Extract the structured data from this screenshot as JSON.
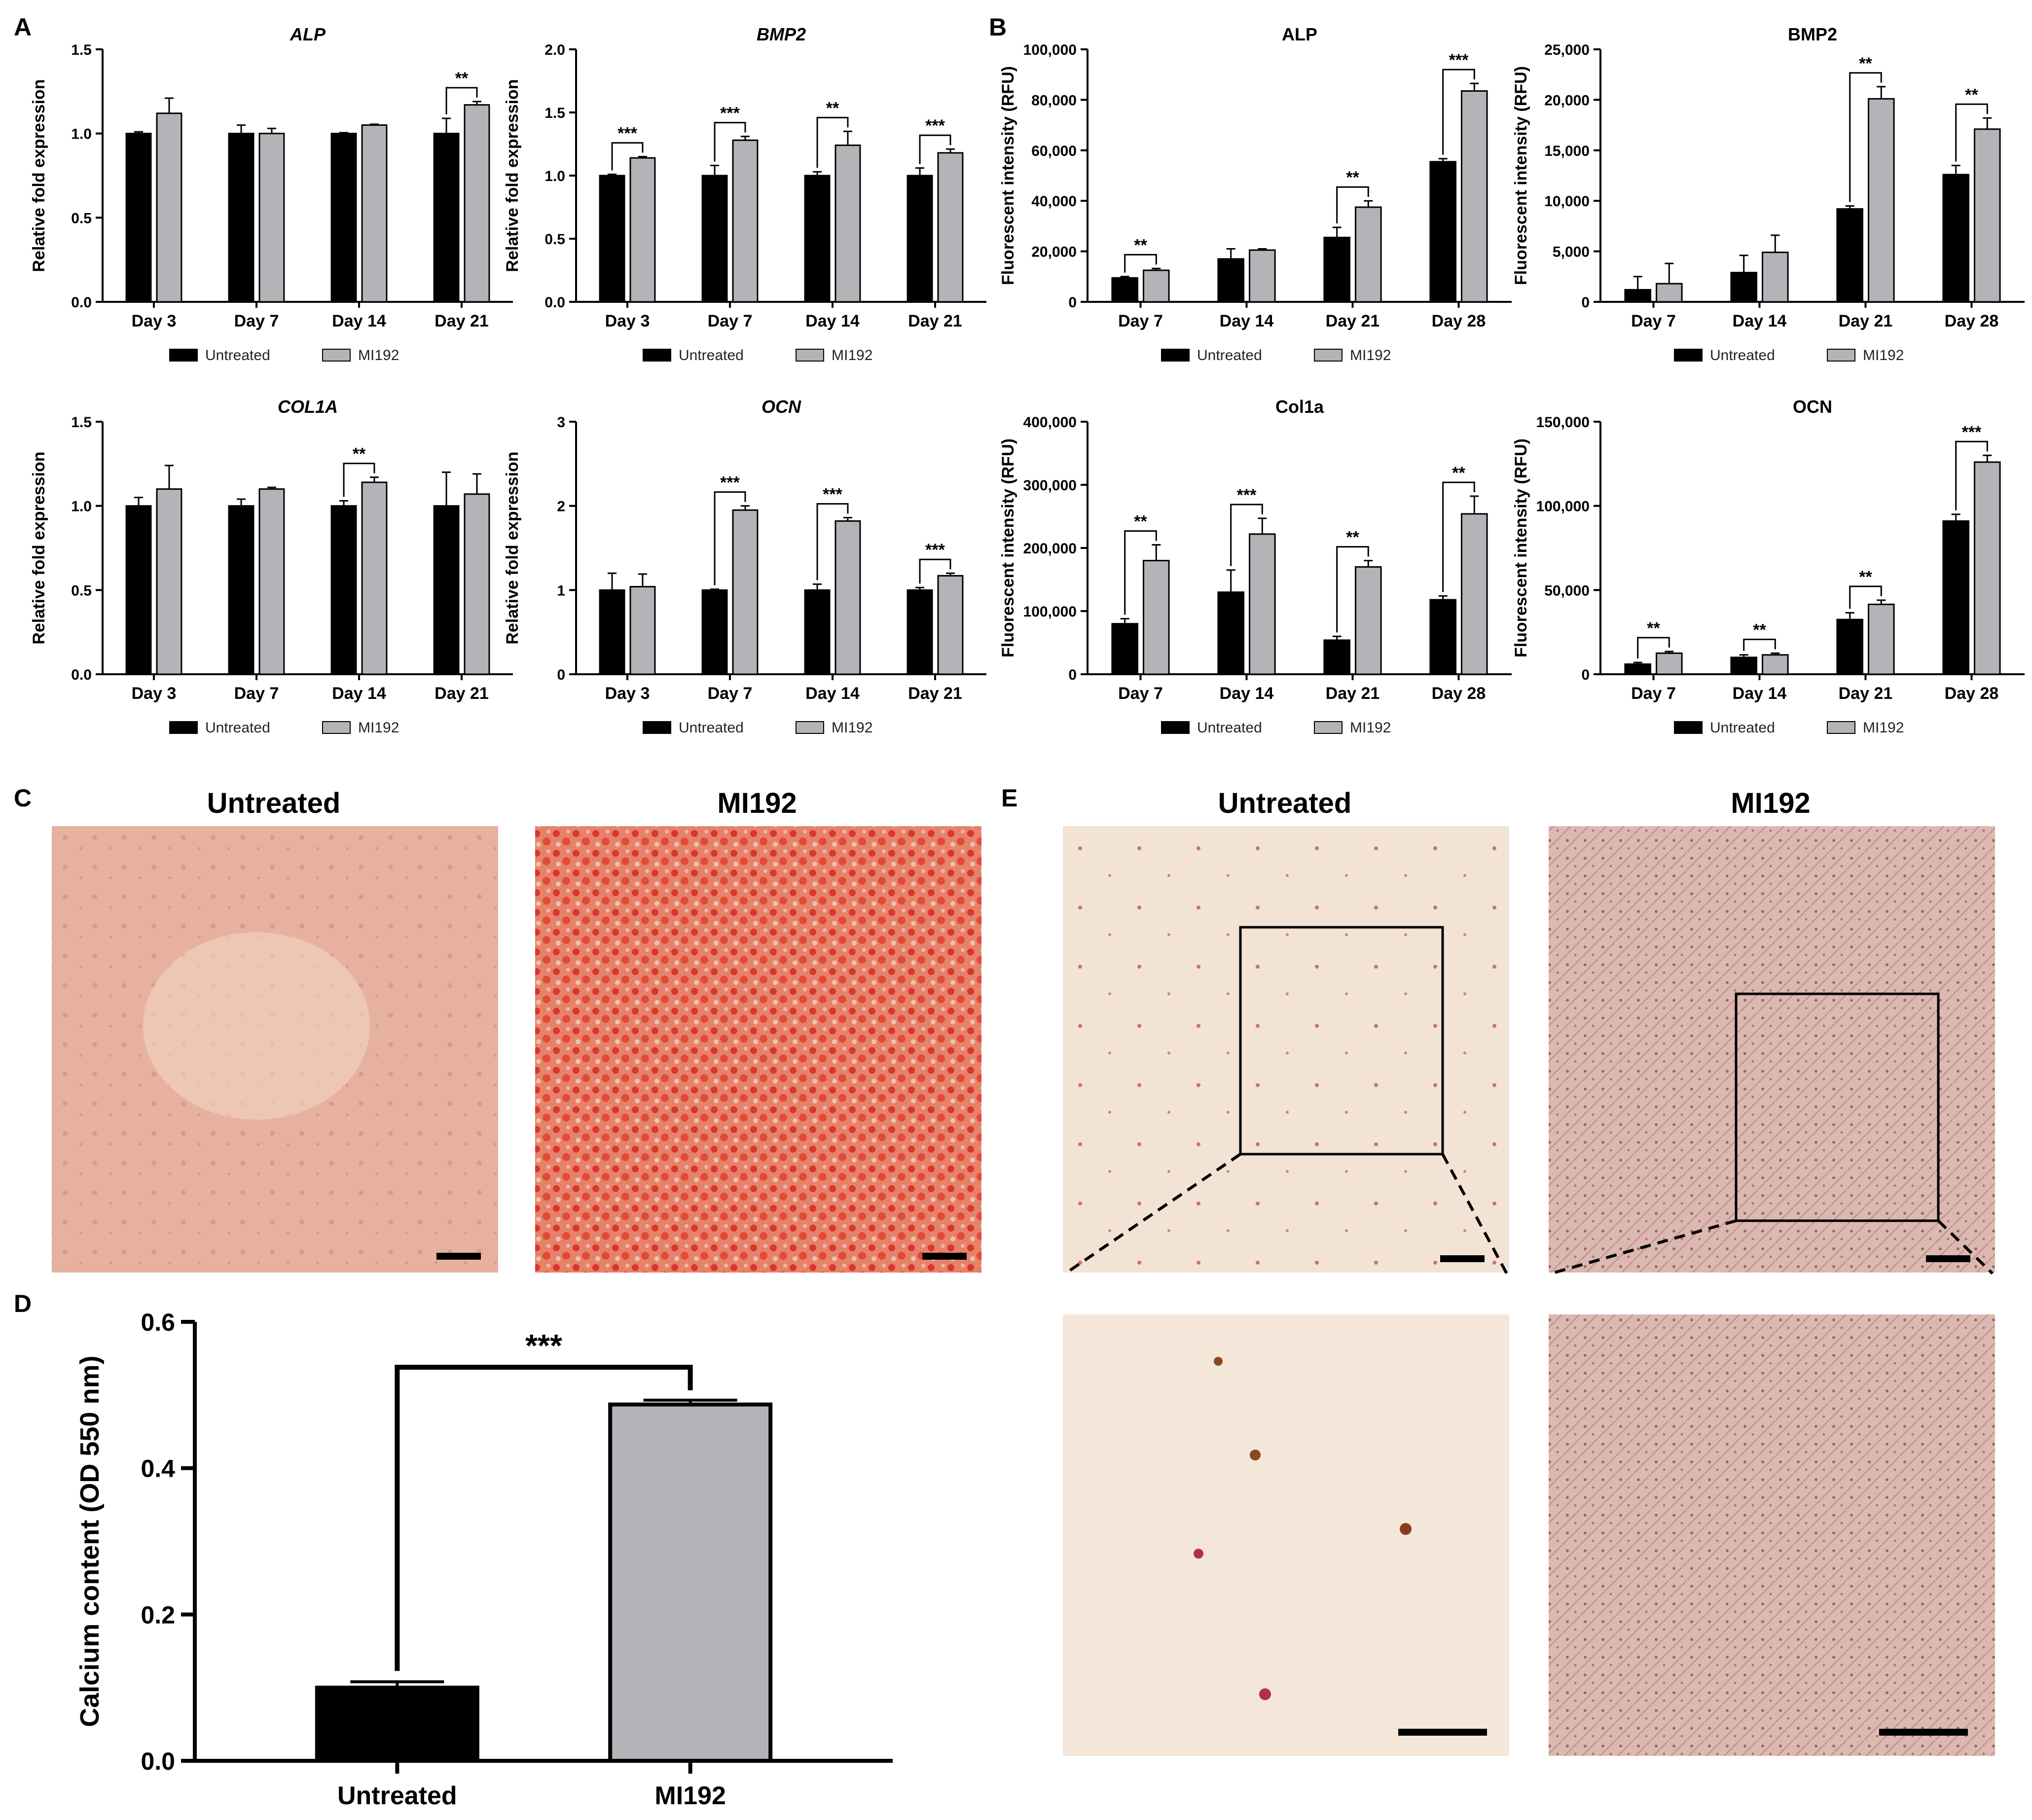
{
  "panel_letters": {
    "a": "A",
    "b": "B",
    "c": "C",
    "d": "D",
    "e": "E"
  },
  "colors": {
    "untreated": "#000000",
    "mi192": "#b4b4b8",
    "axis": "#000000"
  },
  "legend": {
    "untreated": "Untreated",
    "mi192": "MI192"
  },
  "chart_data": [
    {
      "id": "A-ALP",
      "panel": "A",
      "type": "bar",
      "title": "ALP",
      "title_italic": true,
      "ylabel": "Relative fold expression",
      "categories": [
        "Day 3",
        "Day 7",
        "Day 14",
        "Day 21"
      ],
      "ylim": [
        0,
        1.5
      ],
      "yticks": [
        "0.0",
        "0.5",
        "1.0",
        "1.5"
      ],
      "series": [
        {
          "name": "Untreated",
          "values": [
            1.0,
            1.0,
            1.0,
            1.0
          ],
          "errors": [
            0.01,
            0.05,
            0.005,
            0.09
          ]
        },
        {
          "name": "MI192",
          "values": [
            1.12,
            1.0,
            1.05,
            1.17
          ],
          "errors": [
            0.09,
            0.03,
            0.005,
            0.02
          ]
        }
      ],
      "annotations": [
        {
          "category": 3,
          "label": "**"
        }
      ]
    },
    {
      "id": "A-BMP2",
      "panel": "A",
      "type": "bar",
      "title": "BMP2",
      "title_italic": true,
      "ylabel": "Relative fold expression",
      "categories": [
        "Day 3",
        "Day 7",
        "Day 14",
        "Day 21"
      ],
      "ylim": [
        0,
        2.0
      ],
      "yticks": [
        "0.0",
        "0.5",
        "1.0",
        "1.5",
        "2.0"
      ],
      "series": [
        {
          "name": "Untreated",
          "values": [
            1.0,
            1.0,
            1.0,
            1.0
          ],
          "errors": [
            0.01,
            0.08,
            0.03,
            0.06
          ]
        },
        {
          "name": "MI192",
          "values": [
            1.14,
            1.28,
            1.24,
            1.18
          ],
          "errors": [
            0.01,
            0.03,
            0.11,
            0.03
          ]
        }
      ],
      "annotations": [
        {
          "category": 0,
          "label": "***"
        },
        {
          "category": 1,
          "label": "***"
        },
        {
          "category": 2,
          "label": "**"
        },
        {
          "category": 3,
          "label": "***"
        }
      ]
    },
    {
      "id": "A-COL1A",
      "panel": "A",
      "type": "bar",
      "title": "COL1A",
      "title_italic": true,
      "ylabel": "Relative fold expression",
      "categories": [
        "Day 3",
        "Day 7",
        "Day 14",
        "Day 21"
      ],
      "ylim": [
        0,
        1.5
      ],
      "yticks": [
        "0.0",
        "0.5",
        "1.0",
        "1.5"
      ],
      "series": [
        {
          "name": "Untreated",
          "values": [
            1.0,
            1.0,
            1.0,
            1.0
          ],
          "errors": [
            0.05,
            0.04,
            0.03,
            0.2
          ]
        },
        {
          "name": "MI192",
          "values": [
            1.1,
            1.1,
            1.14,
            1.07
          ],
          "errors": [
            0.14,
            0.01,
            0.03,
            0.12
          ]
        }
      ],
      "annotations": [
        {
          "category": 2,
          "label": "**"
        }
      ]
    },
    {
      "id": "A-OCN",
      "panel": "A",
      "type": "bar",
      "title": "OCN",
      "title_italic": true,
      "ylabel": "Relative fold expression",
      "categories": [
        "Day 3",
        "Day 7",
        "Day 14",
        "Day 21"
      ],
      "ylim": [
        0,
        3
      ],
      "yticks": [
        "0",
        "1",
        "2",
        "3"
      ],
      "series": [
        {
          "name": "Untreated",
          "values": [
            1.0,
            1.0,
            1.0,
            1.0
          ],
          "errors": [
            0.2,
            0.01,
            0.07,
            0.03
          ]
        },
        {
          "name": "MI192",
          "values": [
            1.04,
            1.95,
            1.82,
            1.17
          ],
          "errors": [
            0.15,
            0.05,
            0.04,
            0.03
          ]
        }
      ],
      "annotations": [
        {
          "category": 1,
          "label": "***"
        },
        {
          "category": 2,
          "label": "***"
        },
        {
          "category": 3,
          "label": "***"
        }
      ]
    },
    {
      "id": "B-ALP",
      "panel": "B",
      "type": "bar",
      "title": "ALP",
      "title_italic": false,
      "ylabel": "Fluorescent intensity (RFU)",
      "categories": [
        "Day 7",
        "Day 14",
        "Day 21",
        "Day 28"
      ],
      "ylim": [
        0,
        100000
      ],
      "yticks": [
        "0",
        "20,000",
        "40,000",
        "60,000",
        "80,000",
        "100,000"
      ],
      "series": [
        {
          "name": "Untreated",
          "values": [
            9500,
            17000,
            25500,
            55500
          ],
          "errors": [
            500,
            4000,
            4000,
            1200
          ]
        },
        {
          "name": "MI192",
          "values": [
            12500,
            20500,
            37500,
            83500
          ],
          "errors": [
            700,
            500,
            2500,
            3000
          ]
        }
      ],
      "annotations": [
        {
          "category": 0,
          "label": "**"
        },
        {
          "category": 2,
          "label": "**"
        },
        {
          "category": 3,
          "label": "***"
        }
      ]
    },
    {
      "id": "B-BMP2",
      "panel": "B",
      "type": "bar",
      "title": "BMP2",
      "title_italic": false,
      "ylabel": "Fluorescent intensity (RFU)",
      "categories": [
        "Day 7",
        "Day 14",
        "Day 21",
        "Day 28"
      ],
      "ylim": [
        0,
        25000
      ],
      "yticks": [
        "0",
        "5,000",
        "10,000",
        "15,000",
        "20,000",
        "25,000"
      ],
      "series": [
        {
          "name": "Untreated",
          "values": [
            1200,
            2900,
            9200,
            12600
          ],
          "errors": [
            1300,
            1700,
            300,
            900
          ]
        },
        {
          "name": "MI192",
          "values": [
            1800,
            4900,
            20100,
            17100
          ],
          "errors": [
            2000,
            1700,
            1200,
            1100
          ]
        }
      ],
      "annotations": [
        {
          "category": 2,
          "label": "**"
        },
        {
          "category": 3,
          "label": "**"
        }
      ]
    },
    {
      "id": "B-Col1a",
      "panel": "B",
      "type": "bar",
      "title": "Col1a",
      "title_italic": false,
      "ylabel": "Fluorescent intensity (RFU)",
      "categories": [
        "Day 7",
        "Day 14",
        "Day 21",
        "Day 28"
      ],
      "ylim": [
        0,
        400000
      ],
      "yticks": [
        "0",
        "100,000",
        "200,000",
        "300,000",
        "400,000"
      ],
      "series": [
        {
          "name": "Untreated",
          "values": [
            80000,
            130000,
            54000,
            118000
          ],
          "errors": [
            8000,
            35000,
            6000,
            6000
          ]
        },
        {
          "name": "MI192",
          "values": [
            180000,
            222000,
            170000,
            254000
          ],
          "errors": [
            25000,
            25000,
            10000,
            28000
          ]
        }
      ],
      "annotations": [
        {
          "category": 0,
          "label": "**"
        },
        {
          "category": 1,
          "label": "***"
        },
        {
          "category": 2,
          "label": "**"
        },
        {
          "category": 3,
          "label": "**"
        }
      ]
    },
    {
      "id": "B-OCN",
      "panel": "B",
      "type": "bar",
      "title": "OCN",
      "title_italic": false,
      "ylabel": "Fluorescent intensity (RFU)",
      "categories": [
        "Day 7",
        "Day 14",
        "Day 21",
        "Day 28"
      ],
      "ylim": [
        0,
        150000
      ],
      "yticks": [
        "0",
        "50,000",
        "100,000",
        "150,000"
      ],
      "series": [
        {
          "name": "Untreated",
          "values": [
            6000,
            10000,
            32500,
            91000
          ],
          "errors": [
            1000,
            1500,
            4000,
            4000
          ]
        },
        {
          "name": "MI192",
          "values": [
            12500,
            11500,
            41500,
            126000
          ],
          "errors": [
            1000,
            1000,
            2500,
            4000
          ]
        }
      ],
      "annotations": [
        {
          "category": 0,
          "label": "**"
        },
        {
          "category": 1,
          "label": "**"
        },
        {
          "category": 2,
          "label": "**"
        },
        {
          "category": 3,
          "label": "***"
        }
      ]
    },
    {
      "id": "D",
      "panel": "D",
      "type": "bar",
      "title": "",
      "ylabel": "Calcium content (OD 550 nm)",
      "categories": [
        "Untreated",
        "MI192"
      ],
      "ylim": [
        0,
        0.6
      ],
      "yticks": [
        "0.0",
        "0.2",
        "0.4",
        "0.6"
      ],
      "values": [
        0.1,
        0.487
      ],
      "errors": [
        0.008,
        0.006
      ],
      "annotations": [
        {
          "from": 0,
          "to": 1,
          "label": "***"
        }
      ]
    }
  ],
  "images": {
    "c_untreated_title": "Untreated",
    "c_mi192_title": "MI192",
    "e_untreated_title": "Untreated",
    "e_mi192_title": "MI192"
  }
}
